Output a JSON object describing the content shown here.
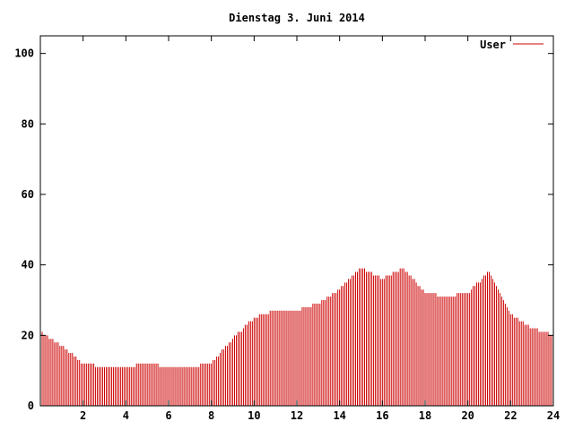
{
  "chart_data": {
    "type": "bar",
    "title": "Dienstag 3. Juni 2014",
    "xlabel": "",
    "ylabel": "",
    "xlim": [
      0,
      24
    ],
    "ylim": [
      0,
      105
    ],
    "grid": false,
    "legend_position": "top-right",
    "x_ticks": [
      2,
      4,
      6,
      8,
      10,
      12,
      14,
      16,
      18,
      20,
      22,
      24
    ],
    "y_ticks": [
      0,
      20,
      40,
      60,
      80,
      100
    ],
    "series": [
      {
        "name": "User",
        "color": "#cc0000",
        "x": [
          0,
          1,
          2,
          3,
          4,
          5,
          6,
          7,
          8,
          9,
          10,
          11,
          12,
          13,
          14,
          15,
          16,
          17,
          18,
          19,
          20,
          21,
          22,
          23,
          24
        ],
        "values": [
          21,
          17,
          12,
          11,
          11,
          12,
          11,
          11,
          12,
          19,
          25,
          27,
          27,
          29,
          33,
          39,
          36,
          39,
          32,
          31,
          32,
          38,
          26,
          22,
          20
        ]
      }
    ]
  }
}
